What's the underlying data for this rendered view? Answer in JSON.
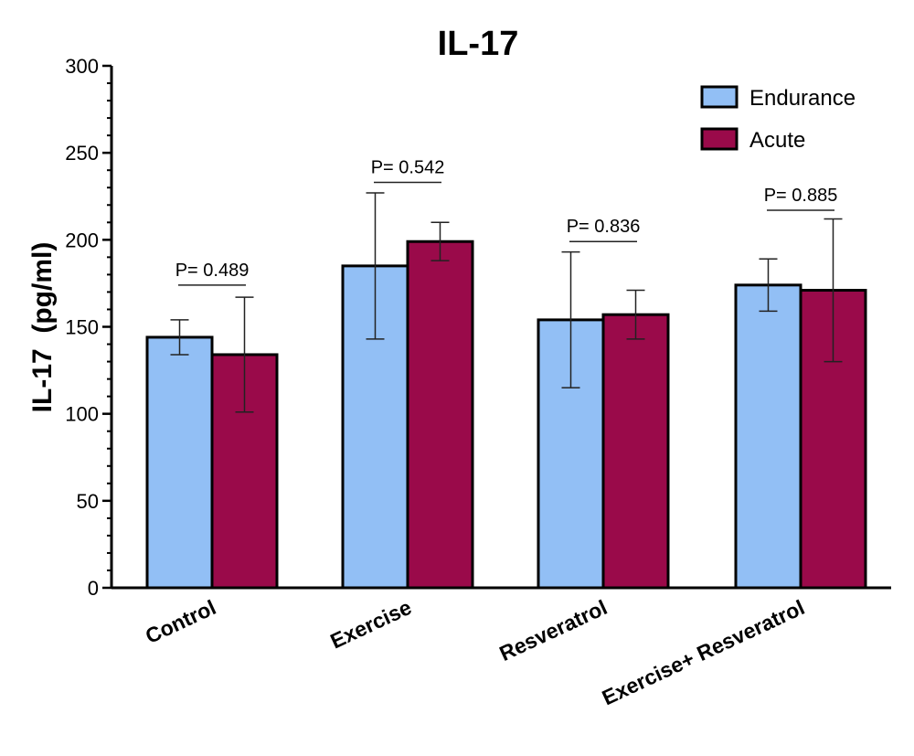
{
  "chart_data": {
    "type": "bar",
    "title": "IL-17",
    "xlabel": "",
    "ylabel": "IL-17  (pg/ml)",
    "ylim": [
      0,
      300
    ],
    "yticks": [
      0,
      50,
      100,
      150,
      200,
      250,
      300
    ],
    "minor_tick_step": 10,
    "grid": false,
    "legend_position": "top-right",
    "categories": [
      "Control",
      "Exercise",
      "Resveratrol",
      "Exercise+ Resveratrol"
    ],
    "series": [
      {
        "name": "Endurance",
        "color": "#92bff5",
        "values": [
          144,
          185,
          154,
          174
        ],
        "errors": [
          10,
          42,
          39,
          15
        ]
      },
      {
        "name": "Acute",
        "color": "#9a0a4a",
        "values": [
          134,
          199,
          157,
          171
        ],
        "errors": [
          33,
          11,
          14,
          41
        ]
      }
    ],
    "annotations": [
      {
        "category": "Control",
        "text": "P= 0.489",
        "y": 174
      },
      {
        "category": "Exercise",
        "text": "P= 0.542",
        "y": 233
      },
      {
        "category": "Resveratrol",
        "text": "P= 0.836",
        "y": 199
      },
      {
        "category": "Exercise+ Resveratrol",
        "text": "P= 0.885",
        "y": 217
      }
    ]
  }
}
